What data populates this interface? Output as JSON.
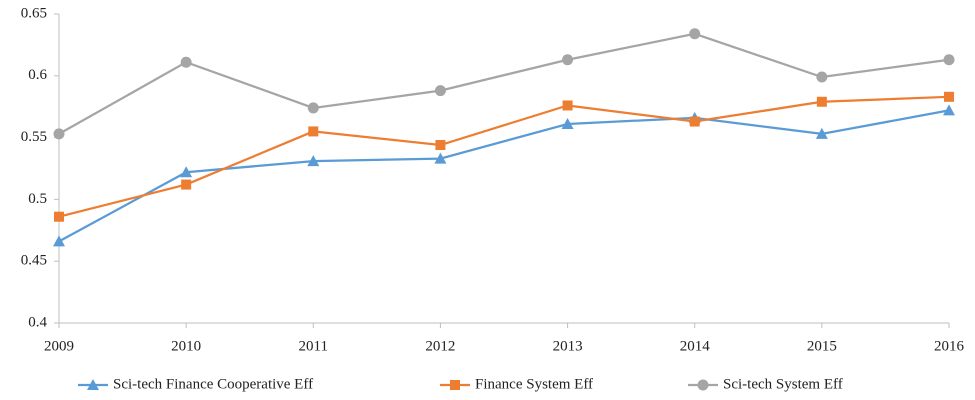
{
  "chart_data": {
    "type": "line",
    "x": [
      2009,
      2010,
      2011,
      2012,
      2013,
      2014,
      2015,
      2016
    ],
    "xlim": [
      2009,
      2016
    ],
    "xticks": [
      2009,
      2010,
      2011,
      2012,
      2013,
      2014,
      2015,
      2016
    ],
    "ylim": [
      0.4,
      0.65
    ],
    "yticks": [
      0.4,
      0.45,
      0.5,
      0.55,
      0.6,
      0.65
    ],
    "grid": false,
    "legend": "bottom",
    "series": [
      {
        "name": "Sci-tech Finance Cooperative Eff",
        "color": "#5b9bd5",
        "marker": "triangle",
        "values": [
          0.466,
          0.522,
          0.531,
          0.533,
          0.561,
          0.566,
          0.553,
          0.572
        ]
      },
      {
        "name": "Finance System Eff",
        "color": "#ed7d31",
        "marker": "square",
        "values": [
          0.486,
          0.512,
          0.555,
          0.544,
          0.576,
          0.563,
          0.579,
          0.583
        ]
      },
      {
        "name": "Sci-tech System Eff",
        "color": "#a5a5a5",
        "marker": "circle",
        "values": [
          0.553,
          0.611,
          0.574,
          0.588,
          0.613,
          0.634,
          0.599,
          0.613
        ]
      }
    ]
  }
}
